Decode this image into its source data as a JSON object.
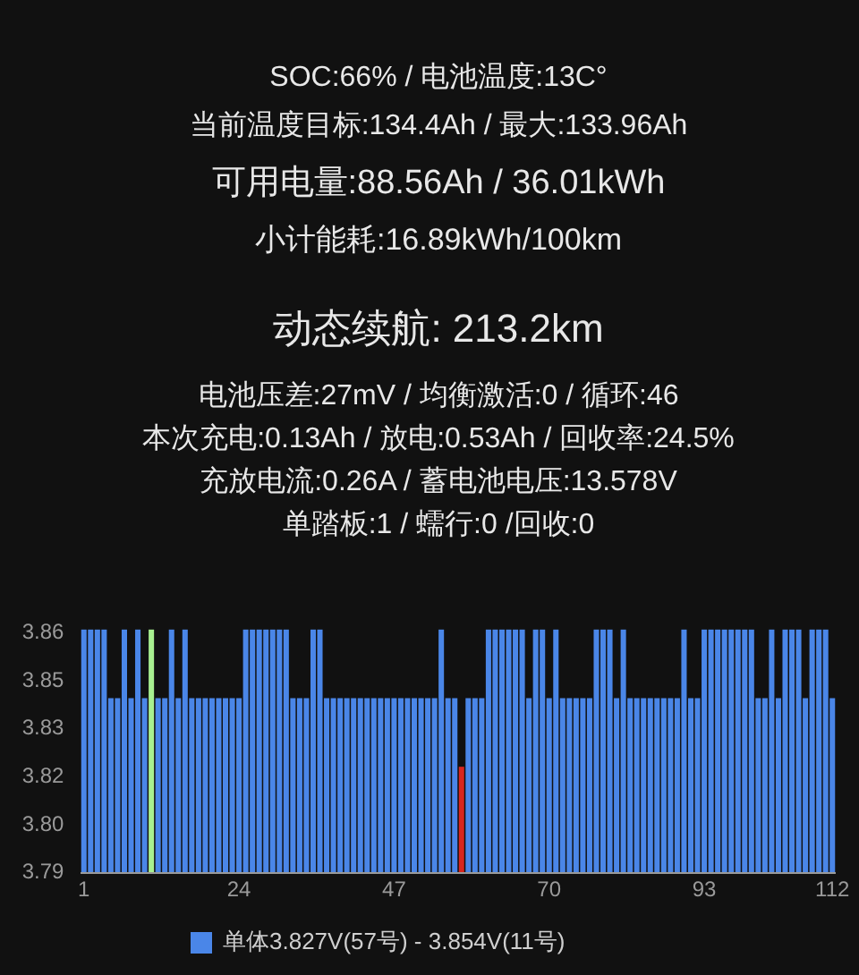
{
  "chart_data": [
    {
      "type": "other",
      "annotations": [
        "SOC:66% / 电池温度:13C°",
        "当前温度目标:134.4Ah / 最大:133.96Ah",
        "可用电量:88.56Ah / 36.01kWh",
        "小计能耗:16.89kWh/100km",
        "动态续航: 213.2km",
        "电池压差:27mV / 均衡激活:0 / 循环:46",
        "本次充电:0.13Ah / 放电:0.53Ah / 回收率:24.5%",
        "充放电流:0.26A / 蓄电池电压:13.578V",
        "单踏板:1 / 蠕行:0 /回收:0"
      ]
    },
    {
      "type": "bar",
      "legend": "bottom",
      "categories": [
        "1",
        null,
        null,
        null,
        null,
        null,
        null,
        null,
        null,
        null,
        null,
        null,
        null,
        null,
        null,
        null,
        null,
        null,
        null,
        null,
        null,
        null,
        null,
        "24",
        null,
        null,
        null,
        null,
        null,
        null,
        null,
        null,
        null,
        null,
        null,
        null,
        null,
        null,
        null,
        null,
        null,
        null,
        null,
        null,
        null,
        null,
        "47",
        null,
        null,
        null,
        null,
        null,
        null,
        null,
        null,
        null,
        null,
        null,
        null,
        null,
        null,
        null,
        null,
        null,
        null,
        null,
        null,
        null,
        null,
        "70",
        null,
        null,
        null,
        null,
        null,
        null,
        null,
        null,
        null,
        null,
        null,
        null,
        null,
        null,
        null,
        null,
        null,
        null,
        null,
        null,
        null,
        null,
        "93",
        null,
        null,
        null,
        null,
        null,
        null,
        null,
        null,
        null,
        null,
        null,
        null,
        null,
        null,
        null,
        null,
        null,
        null,
        "112"
      ],
      "ylim": [
        3.79,
        3.862
      ],
      "yticks": [
        {
          "value": 3.79,
          "label": "3.79"
        },
        {
          "value": 3.804,
          "label": "3.80"
        },
        {
          "value": 3.818,
          "label": "3.82"
        },
        {
          "value": 3.832,
          "label": "3.83"
        },
        {
          "value": 3.846,
          "label": "3.85"
        },
        {
          "value": 3.86,
          "label": "3.86"
        }
      ],
      "series": [
        {
          "name": "单体3.827V(57号) - 3.854V(11号)",
          "color": "#4a86e8",
          "colors": [
            "#4a86e8",
            "#4a86e8",
            "#4a86e8",
            "#4a86e8",
            "#4a86e8",
            "#4a86e8",
            "#4a86e8",
            "#4a86e8",
            "#4a86e8",
            "#4a86e8",
            "#a8f090",
            "#4a86e8",
            "#4a86e8",
            "#4a86e8",
            "#4a86e8",
            "#4a86e8",
            "#4a86e8",
            "#4a86e8",
            "#4a86e8",
            "#4a86e8",
            "#4a86e8",
            "#4a86e8",
            "#4a86e8",
            "#4a86e8",
            "#4a86e8",
            "#4a86e8",
            "#4a86e8",
            "#4a86e8",
            "#4a86e8",
            "#4a86e8",
            "#4a86e8",
            "#4a86e8",
            "#4a86e8",
            "#4a86e8",
            "#4a86e8",
            "#4a86e8",
            "#4a86e8",
            "#4a86e8",
            "#4a86e8",
            "#4a86e8",
            "#4a86e8",
            "#4a86e8",
            "#4a86e8",
            "#4a86e8",
            "#4a86e8",
            "#4a86e8",
            "#4a86e8",
            "#4a86e8",
            "#4a86e8",
            "#4a86e8",
            "#4a86e8",
            "#4a86e8",
            "#4a86e8",
            "#4a86e8",
            "#4a86e8",
            "#4a86e8",
            "#d8261e",
            "#4a86e8",
            "#4a86e8",
            "#4a86e8",
            "#4a86e8",
            "#4a86e8",
            "#4a86e8",
            "#4a86e8",
            "#4a86e8",
            "#4a86e8",
            "#4a86e8",
            "#4a86e8",
            "#4a86e8",
            "#4a86e8",
            "#4a86e8",
            "#4a86e8",
            "#4a86e8",
            "#4a86e8",
            "#4a86e8",
            "#4a86e8",
            "#4a86e8",
            "#4a86e8",
            "#4a86e8",
            "#4a86e8",
            "#4a86e8",
            "#4a86e8",
            "#4a86e8",
            "#4a86e8",
            "#4a86e8",
            "#4a86e8",
            "#4a86e8",
            "#4a86e8",
            "#4a86e8",
            "#4a86e8",
            "#4a86e8",
            "#4a86e8",
            "#4a86e8",
            "#4a86e8",
            "#4a86e8",
            "#4a86e8",
            "#4a86e8",
            "#4a86e8",
            "#4a86e8",
            "#4a86e8",
            "#4a86e8",
            "#4a86e8",
            "#4a86e8",
            "#4a86e8",
            "#4a86e8",
            "#4a86e8",
            "#4a86e8",
            "#4a86e8",
            "#4a86e8",
            "#4a86e8",
            "#4a86e8",
            "#4a86e8"
          ],
          "values": [
            3.861,
            3.861,
            3.861,
            3.861,
            3.841,
            3.841,
            3.861,
            3.841,
            3.861,
            3.841,
            3.861,
            3.841,
            3.841,
            3.861,
            3.841,
            3.861,
            3.841,
            3.841,
            3.841,
            3.841,
            3.841,
            3.841,
            3.841,
            3.841,
            3.861,
            3.861,
            3.861,
            3.861,
            3.861,
            3.861,
            3.861,
            3.841,
            3.841,
            3.841,
            3.861,
            3.861,
            3.841,
            3.841,
            3.841,
            3.841,
            3.841,
            3.841,
            3.841,
            3.841,
            3.841,
            3.841,
            3.841,
            3.841,
            3.841,
            3.841,
            3.841,
            3.841,
            3.841,
            3.861,
            3.841,
            3.841,
            3.821,
            3.841,
            3.841,
            3.841,
            3.861,
            3.861,
            3.861,
            3.861,
            3.861,
            3.861,
            3.841,
            3.861,
            3.861,
            3.841,
            3.861,
            3.841,
            3.841,
            3.841,
            3.841,
            3.841,
            3.861,
            3.861,
            3.861,
            3.841,
            3.861,
            3.841,
            3.841,
            3.841,
            3.841,
            3.841,
            3.841,
            3.841,
            3.841,
            3.861,
            3.841,
            3.841,
            3.861,
            3.861,
            3.861,
            3.861,
            3.861,
            3.861,
            3.861,
            3.861,
            3.841,
            3.841,
            3.861,
            3.841,
            3.861,
            3.861,
            3.861,
            3.841,
            3.861,
            3.861,
            3.861,
            3.841
          ]
        }
      ]
    }
  ]
}
